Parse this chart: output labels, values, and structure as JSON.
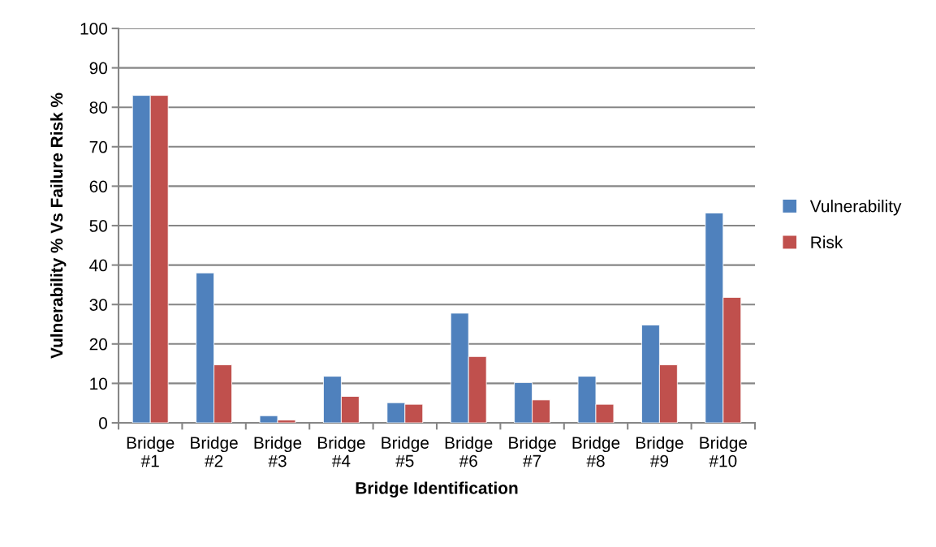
{
  "chart_data": {
    "type": "bar",
    "xlabel": "Bridge Identification",
    "ylabel": "Vulnerability % Vs Failure Risk %",
    "categories": [
      "Bridge\n#1",
      "Bridge\n#2",
      "Bridge\n#3",
      "Bridge\n#4",
      "Bridge\n#5",
      "Bridge\n#6",
      "Bridge\n#7",
      "Bridge\n#8",
      "Bridge\n#9",
      "Bridge\n#10"
    ],
    "series": [
      {
        "name": "Vulnerability",
        "color": "#4f81bd",
        "values": [
          83,
          38,
          1.8,
          11.8,
          5.1,
          27.8,
          10.2,
          11.8,
          24.8,
          53.2
        ]
      },
      {
        "name": "Risk",
        "color": "#c0504d",
        "values": [
          83,
          14.7,
          0.7,
          6.7,
          4.7,
          16.8,
          5.8,
          4.7,
          14.7,
          31.8
        ]
      }
    ],
    "ylim": [
      0,
      100
    ],
    "yticks": [
      0,
      10,
      20,
      30,
      40,
      50,
      60,
      70,
      80,
      90,
      100
    ],
    "grid": "y",
    "legend": "right"
  }
}
